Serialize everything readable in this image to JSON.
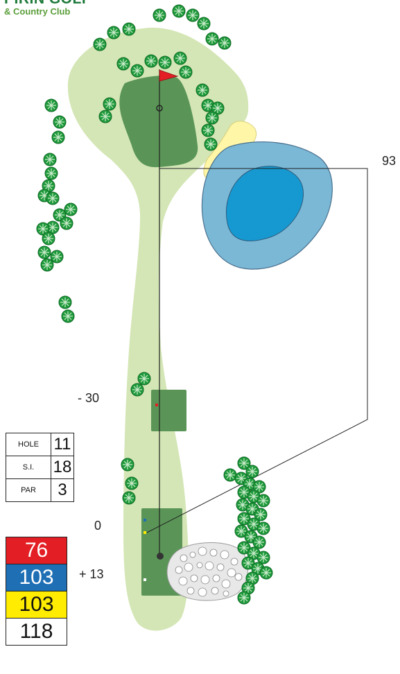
{
  "logo": {
    "line1": "PIRIN GOLF",
    "line2": "& Country Club"
  },
  "distance_labels": {
    "right": "93",
    "marker_minus": "- 30",
    "marker_zero": "0",
    "marker_plus": "+ 13"
  },
  "hole_info": [
    {
      "key": "HOLE",
      "value": "11"
    },
    {
      "key": "S.I.",
      "value": "18"
    },
    {
      "key": "PAR",
      "value": "3"
    }
  ],
  "tees": [
    {
      "value": "76",
      "color": "#e31e24",
      "text_color": "#ffffff"
    },
    {
      "value": "103",
      "color": "#1f6fb5",
      "text_color": "#ffffff"
    },
    {
      "value": "103",
      "color": "#ffec00",
      "text_color": "#111111"
    },
    {
      "value": "118",
      "color": "#ffffff",
      "text_color": "#111111"
    }
  ],
  "colors": {
    "rough": "#d4e6b5",
    "green": "#5a9557",
    "tee_box": "#5a9557",
    "water_outer": "#7ab8d6",
    "water_inner": "#1699d1",
    "sand": "#fff6a8",
    "bunker_rocks": "#e8e8e8",
    "tree": "#1f9a3b",
    "flag": "#e31e24"
  },
  "icons": [
    "tree-icon",
    "flag-icon",
    "tee-marker-icon"
  ]
}
